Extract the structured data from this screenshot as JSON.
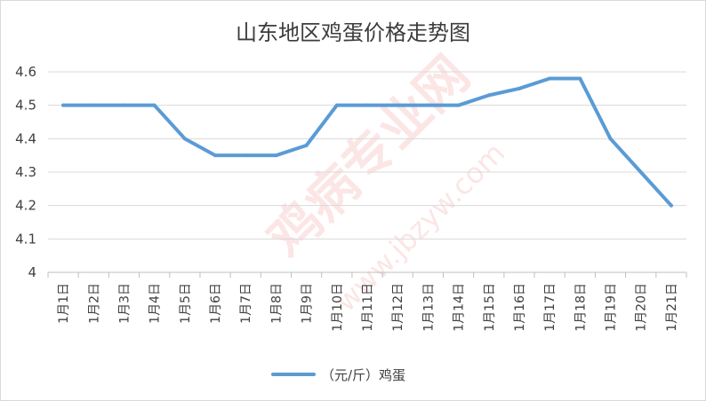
{
  "chart_data": {
    "type": "line",
    "title": "山东地区鸡蛋价格走势图",
    "categories": [
      "1月1日",
      "1月2日",
      "1月3日",
      "1月4日",
      "1月5日",
      "1月6日",
      "1月7日",
      "1月8日",
      "1月9日",
      "1月10日",
      "1月11日",
      "1月12日",
      "1月13日",
      "1月14日",
      "1月15日",
      "1月16日",
      "1月17日",
      "1月18日",
      "1月19日",
      "1月20日",
      "1月21日"
    ],
    "series": [
      {
        "name": "（元/斤）鸡蛋",
        "color": "#5b9bd5",
        "values": [
          4.5,
          4.5,
          4.5,
          4.5,
          4.4,
          4.35,
          4.35,
          4.35,
          4.38,
          4.5,
          4.5,
          4.5,
          4.5,
          4.5,
          4.53,
          4.55,
          4.58,
          4.58,
          4.4,
          4.3,
          4.2
        ]
      }
    ],
    "ylim": [
      4.0,
      4.6
    ],
    "yticks": [
      "4",
      "4.1",
      "4.2",
      "4.3",
      "4.4",
      "4.5",
      "4.6"
    ],
    "grid": true,
    "legend_position": "bottom",
    "xlabel": "",
    "ylabel": ""
  },
  "watermark": {
    "text": "鸡病专业网",
    "url": "www.jbzyw.com"
  }
}
